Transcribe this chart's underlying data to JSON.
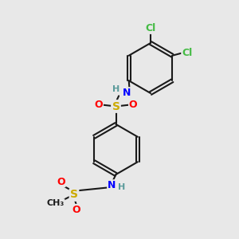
{
  "bg_color": "#e8e8e8",
  "bond_color": "#1a1a1a",
  "atom_colors": {
    "N": "#0000ff",
    "H": "#5a9a9a",
    "S": "#ccaa00",
    "O": "#ff0000",
    "Cl": "#44bb44",
    "C": "#1a1a1a"
  },
  "line_width": 1.5,
  "fs": 9
}
